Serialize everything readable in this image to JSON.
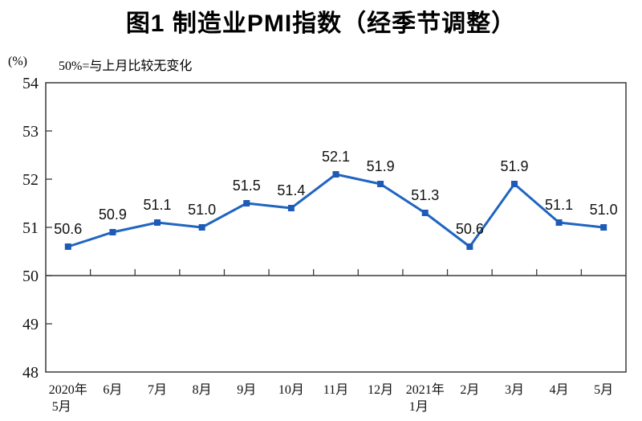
{
  "page": {
    "background": "#ffffff"
  },
  "header": {
    "title": "图1 制造业PMI指数（经季节调整）"
  },
  "chart_data": {
    "type": "line",
    "title": "图1 制造业PMI指数（经季节调整）",
    "unit_label": "(%)",
    "note": "50%=与上月比较无变化",
    "categories": [
      [
        "2020年",
        "5月"
      ],
      [
        "6月"
      ],
      [
        "7月"
      ],
      [
        "8月"
      ],
      [
        "9月"
      ],
      [
        "10月"
      ],
      [
        "11月"
      ],
      [
        "12月"
      ],
      [
        "2021年",
        "1月"
      ],
      [
        "2月"
      ],
      [
        "3月"
      ],
      [
        "4月"
      ],
      [
        "5月"
      ]
    ],
    "values": [
      50.6,
      50.9,
      51.1,
      51.0,
      51.5,
      51.4,
      52.1,
      51.9,
      51.3,
      50.6,
      51.9,
      51.1,
      51.0
    ],
    "data_labels": [
      "50.6",
      "50.9",
      "51.1",
      "51.0",
      "51.5",
      "51.4",
      "52.1",
      "51.9",
      "51.3",
      "50.6",
      "51.9",
      "51.1",
      "51.0"
    ],
    "ylim": [
      48,
      54
    ],
    "yticks": [
      48,
      49,
      50,
      51,
      52,
      53,
      54
    ],
    "reference_line": 50,
    "grid": false,
    "legend": "none",
    "series_name": "制造业PMI",
    "series_color": "#2065C0",
    "marker_color": "#1E5BB8",
    "axis_color": "#3a3a3a",
    "text_color": "#111111"
  }
}
